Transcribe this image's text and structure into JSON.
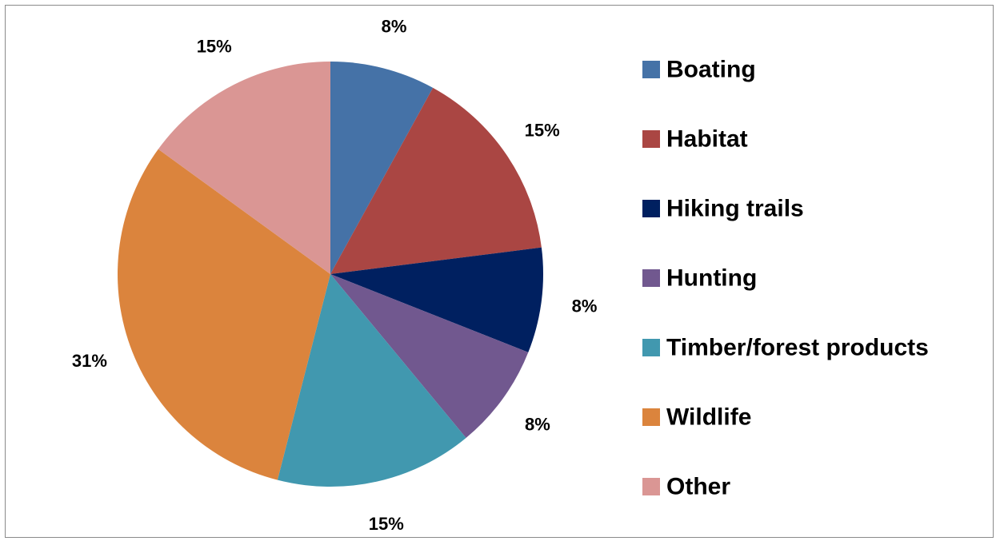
{
  "chart_data": {
    "type": "pie",
    "title": "",
    "legend_position": "right",
    "start_angle_deg": 0,
    "direction": "clockwise",
    "slices": [
      {
        "name": "Boating",
        "value": 8,
        "label": "8%",
        "color": "#4572A7"
      },
      {
        "name": "Habitat",
        "value": 15,
        "label": "15%",
        "color": "#AA4643"
      },
      {
        "name": "Hiking trails",
        "value": 8,
        "label": "8%",
        "color": "#002060"
      },
      {
        "name": "Hunting",
        "value": 8,
        "label": "8%",
        "color": "#71588F"
      },
      {
        "name": "Timber/forest products",
        "value": 15,
        "label": "15%",
        "color": "#4198AF"
      },
      {
        "name": "Wildlife",
        "value": 31,
        "label": "31%",
        "color": "#DB843D"
      },
      {
        "name": "Other",
        "value": 15,
        "label": "15%",
        "color": "#DA9694"
      }
    ]
  }
}
